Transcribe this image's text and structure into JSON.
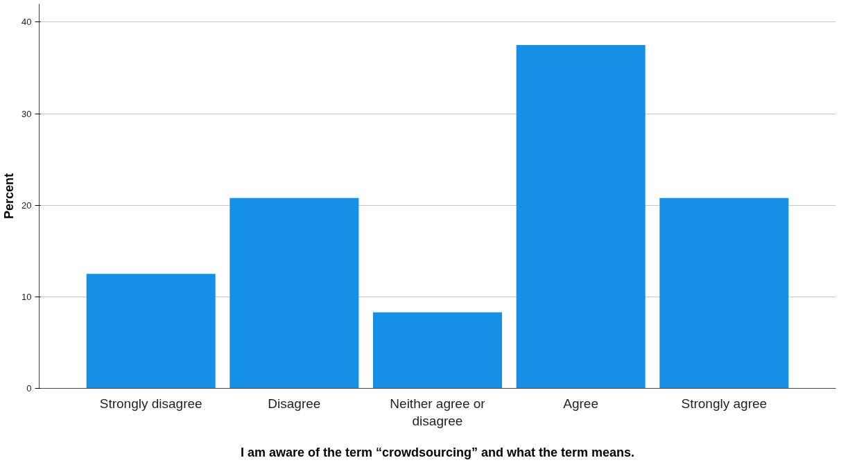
{
  "chart_data": {
    "type": "bar",
    "xlabel": "I am aware of the term “crowdsourcing” and what the term means.",
    "ylabel": "Percent",
    "categories": [
      "Strongly disagree",
      "Disagree",
      "Neither agree or disagree",
      "Agree",
      "Strongly agree"
    ],
    "values": [
      12.5,
      20.8,
      8.3,
      37.5,
      20.8
    ],
    "color": "#1590e6",
    "ylim": [
      0,
      42
    ],
    "yticks": [
      0,
      10,
      20,
      30,
      40
    ],
    "grid": "y"
  }
}
